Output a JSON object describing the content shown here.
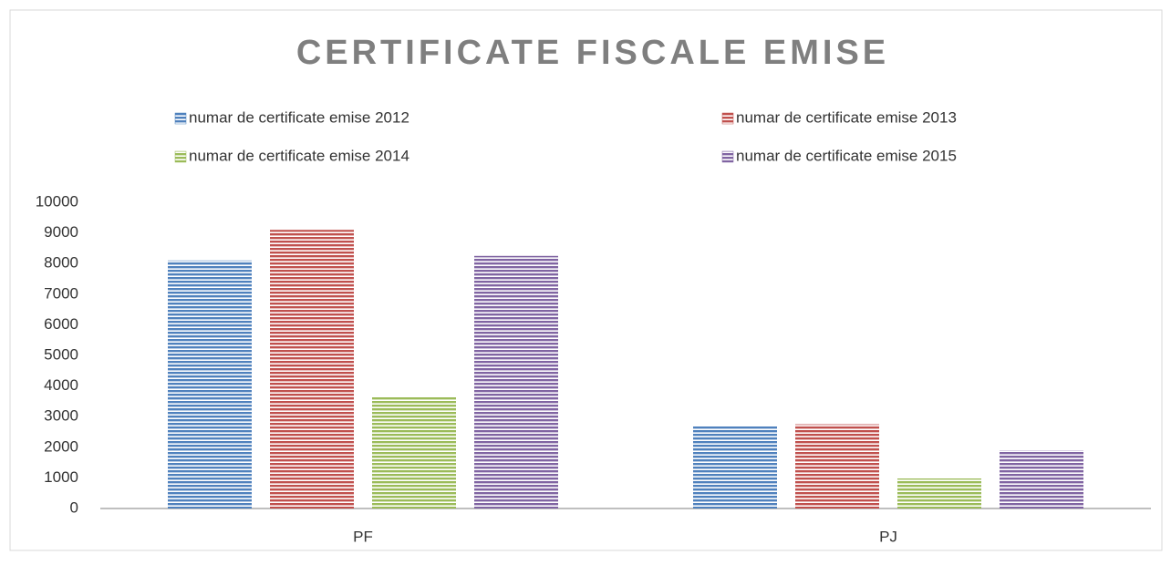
{
  "chart_data": {
    "type": "bar",
    "title": "CERTIFICATE FISCALE EMISE",
    "categories": [
      "PF",
      "PJ"
    ],
    "series": [
      {
        "name": "numar de certificate emise 2012",
        "color": "#4f81bd",
        "values": [
          8100,
          2680
        ]
      },
      {
        "name": "numar de certificate emise 2013",
        "color": "#c0504d",
        "values": [
          9100,
          2750
        ]
      },
      {
        "name": "numar de certificate emise 2014",
        "color": "#9bbb59",
        "values": [
          3650,
          980
        ]
      },
      {
        "name": "numar de certificate emise 2015",
        "color": "#8064a2",
        "values": [
          8250,
          1900
        ]
      }
    ],
    "ylim": [
      0,
      10000
    ],
    "yticks": [
      0,
      1000,
      2000,
      3000,
      4000,
      5000,
      6000,
      7000,
      8000,
      9000,
      10000
    ],
    "grid": false,
    "legend": "top"
  }
}
